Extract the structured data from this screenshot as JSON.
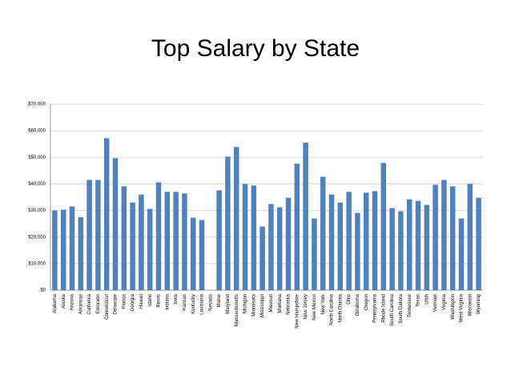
{
  "chart_data": {
    "type": "bar",
    "title": "Top Salary by State",
    "categories": [
      "Alabama",
      "Alaska",
      "Arizona",
      "Arkansas",
      "California",
      "Colorado",
      "Connecticut",
      "Delaware",
      "Florida",
      "Georgia",
      "Hawaii",
      "Idaho",
      "Illinois",
      "Indiana",
      "Iowa",
      "Kansas",
      "Kentucky",
      "Louisiana",
      "Nevada",
      "Maine",
      "Maryland",
      "Massachusetts",
      "Michigan",
      "Minnesota",
      "Mississippi",
      "Missouri",
      "Montana",
      "Nebraska",
      "New Hampshire",
      "New Jersey",
      "New Mexico",
      "New York",
      "North Carolina",
      "North Dakota",
      "Ohio",
      "Oklahoma",
      "Oregon",
      "Pennsylvania",
      "Rhode Island",
      "South Carolina",
      "South Dakota",
      "Tennessee",
      "Texas",
      "Utah",
      "Vermont",
      "Virginia",
      "Washington",
      "West Virginia",
      "Wisconsin",
      "Wyoming"
    ],
    "values": [
      30000,
      30300,
      31500,
      27500,
      41500,
      41500,
      57200,
      49700,
      39100,
      33000,
      36000,
      30600,
      40600,
      37000,
      37000,
      36400,
      27300,
      26400,
      null,
      37600,
      50300,
      53900,
      40000,
      39400,
      24000,
      32400,
      31200,
      34800,
      47600,
      55500,
      27000,
      42700,
      36000,
      33000,
      37000,
      29100,
      36700,
      37300,
      47900,
      30900,
      29700,
      34200,
      33600,
      32100,
      39700,
      41500,
      39100,
      27000,
      40000,
      34800
    ],
    "color": "#4f81bd",
    "ylim": [
      0,
      70000
    ],
    "yticks": [
      {
        "value": 0,
        "label": "$0"
      },
      {
        "value": 10000,
        "label": "$10,000"
      },
      {
        "value": 20000,
        "label": "$20,000"
      },
      {
        "value": 30000,
        "label": "$30,000"
      },
      {
        "value": 40000,
        "label": "$40,000"
      },
      {
        "value": 50000,
        "label": "$50,000"
      },
      {
        "value": 60000,
        "label": "$60,000"
      },
      {
        "value": 70000,
        "label": "$70,000"
      }
    ],
    "grid": true
  }
}
